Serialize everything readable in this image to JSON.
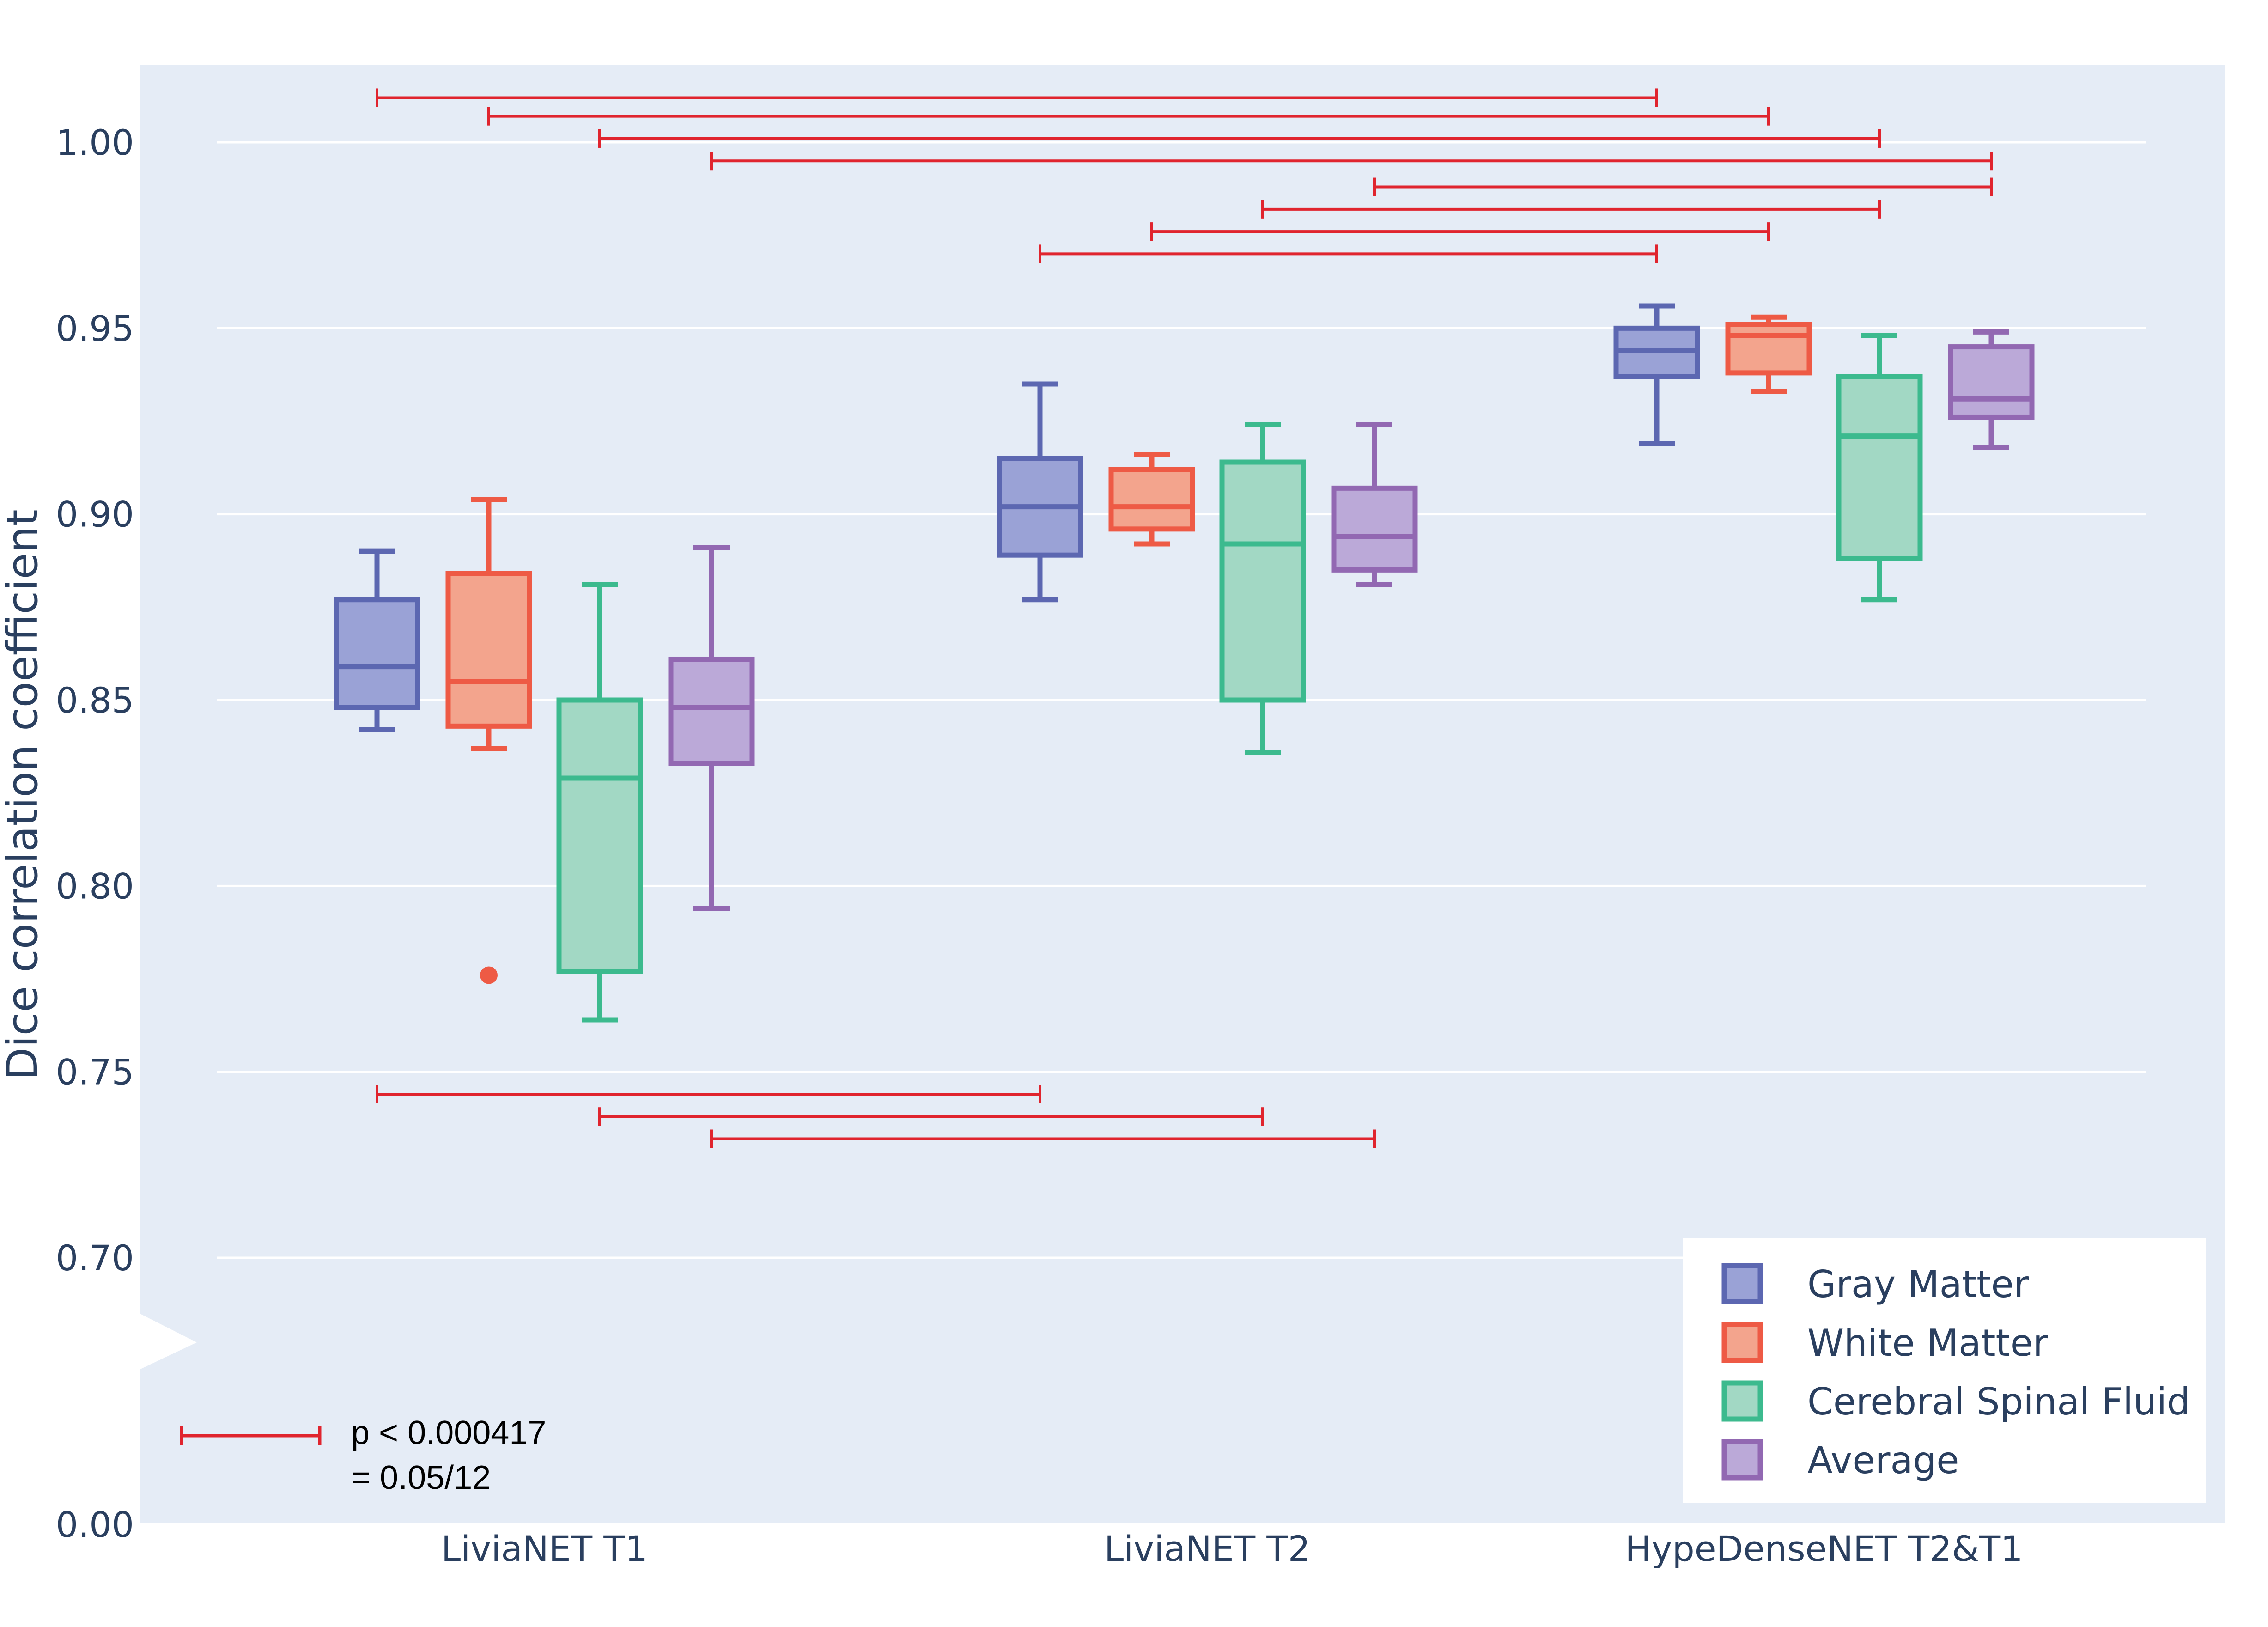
{
  "colors": {
    "background": "#e5ecf6",
    "grid": "#ffffff",
    "significance": "#e0242e",
    "text": "#2a3f5f"
  },
  "chart_data": {
    "type": "box",
    "title": "",
    "xlabel": "",
    "ylabel": "Dice correlation coefficient",
    "ylim": [
      0.68,
      1.02
    ],
    "axis_break": {
      "from": 0.0,
      "to": 0.68,
      "label": "0.00"
    },
    "y_ticks": [
      "1.00",
      "0.95",
      "0.90",
      "0.85",
      "0.80",
      "0.75",
      "0.70"
    ],
    "y_tick_values": [
      1.0,
      0.95,
      0.9,
      0.85,
      0.8,
      0.75,
      0.7
    ],
    "y_break_label": "0.00",
    "categories": [
      "LiviaNET T1",
      "LiviaNET T2",
      "HypeDenseNET T2&T1"
    ],
    "series": [
      {
        "name": "Gray Matter",
        "line": "#5c67b1",
        "fill": "#9aa2d6",
        "boxes": [
          {
            "min": 0.842,
            "q1": 0.848,
            "median": 0.859,
            "q3": 0.877,
            "max": 0.89,
            "outliers": []
          },
          {
            "min": 0.877,
            "q1": 0.889,
            "median": 0.902,
            "q3": 0.915,
            "max": 0.935,
            "outliers": []
          },
          {
            "min": 0.919,
            "q1": 0.937,
            "median": 0.944,
            "q3": 0.95,
            "max": 0.956,
            "outliers": []
          }
        ]
      },
      {
        "name": "White Matter",
        "line": "#ee5a45",
        "fill": "#f3a48d",
        "boxes": [
          {
            "min": 0.837,
            "q1": 0.843,
            "median": 0.855,
            "q3": 0.884,
            "max": 0.904,
            "outliers": [
              0.776
            ]
          },
          {
            "min": 0.892,
            "q1": 0.896,
            "median": 0.902,
            "q3": 0.912,
            "max": 0.916,
            "outliers": []
          },
          {
            "min": 0.933,
            "q1": 0.938,
            "median": 0.948,
            "q3": 0.951,
            "max": 0.953,
            "outliers": []
          }
        ]
      },
      {
        "name": "Cerebral Spinal Fluid",
        "line": "#3cba8e",
        "fill": "#a2d8c4",
        "boxes": [
          {
            "min": 0.764,
            "q1": 0.777,
            "median": 0.829,
            "q3": 0.85,
            "max": 0.881,
            "outliers": []
          },
          {
            "min": 0.836,
            "q1": 0.85,
            "median": 0.892,
            "q3": 0.914,
            "max": 0.924,
            "outliers": []
          },
          {
            "min": 0.877,
            "q1": 0.888,
            "median": 0.921,
            "q3": 0.937,
            "max": 0.948,
            "outliers": []
          }
        ]
      },
      {
        "name": "Average",
        "line": "#9268b2",
        "fill": "#bba9d8",
        "boxes": [
          {
            "min": 0.794,
            "q1": 0.833,
            "median": 0.848,
            "q3": 0.861,
            "max": 0.891,
            "outliers": []
          },
          {
            "min": 0.881,
            "q1": 0.885,
            "median": 0.894,
            "q3": 0.907,
            "max": 0.924,
            "outliers": []
          },
          {
            "min": 0.918,
            "q1": 0.926,
            "median": 0.931,
            "q3": 0.945,
            "max": 0.949,
            "outliers": []
          }
        ]
      }
    ],
    "significance_brackets": [
      {
        "from": [
          0,
          0
        ],
        "to": [
          2,
          0
        ],
        "y": 1.012
      },
      {
        "from": [
          0,
          1
        ],
        "to": [
          2,
          1
        ],
        "y": 1.007
      },
      {
        "from": [
          0,
          2
        ],
        "to": [
          2,
          2
        ],
        "y": 1.001
      },
      {
        "from": [
          0,
          3
        ],
        "to": [
          2,
          3
        ],
        "y": 0.995
      },
      {
        "from": [
          1,
          3
        ],
        "to": [
          2,
          3
        ],
        "y": 0.988
      },
      {
        "from": [
          1,
          2
        ],
        "to": [
          2,
          2
        ],
        "y": 0.982
      },
      {
        "from": [
          1,
          1
        ],
        "to": [
          2,
          1
        ],
        "y": 0.976
      },
      {
        "from": [
          1,
          0
        ],
        "to": [
          2,
          0
        ],
        "y": 0.97
      },
      {
        "from": [
          0,
          0
        ],
        "to": [
          1,
          0
        ],
        "y": 0.744
      },
      {
        "from": [
          0,
          2
        ],
        "to": [
          1,
          2
        ],
        "y": 0.738
      },
      {
        "from": [
          0,
          3
        ],
        "to": [
          1,
          3
        ],
        "y": 0.732
      }
    ],
    "legend": {
      "placement": "bottom-right",
      "entries": [
        "Gray Matter",
        "White Matter",
        "Cerebral Spinal Fluid",
        "Average"
      ]
    },
    "annotation": {
      "line1": "p < 0.000417",
      "line2": "= 0.05/12"
    }
  }
}
